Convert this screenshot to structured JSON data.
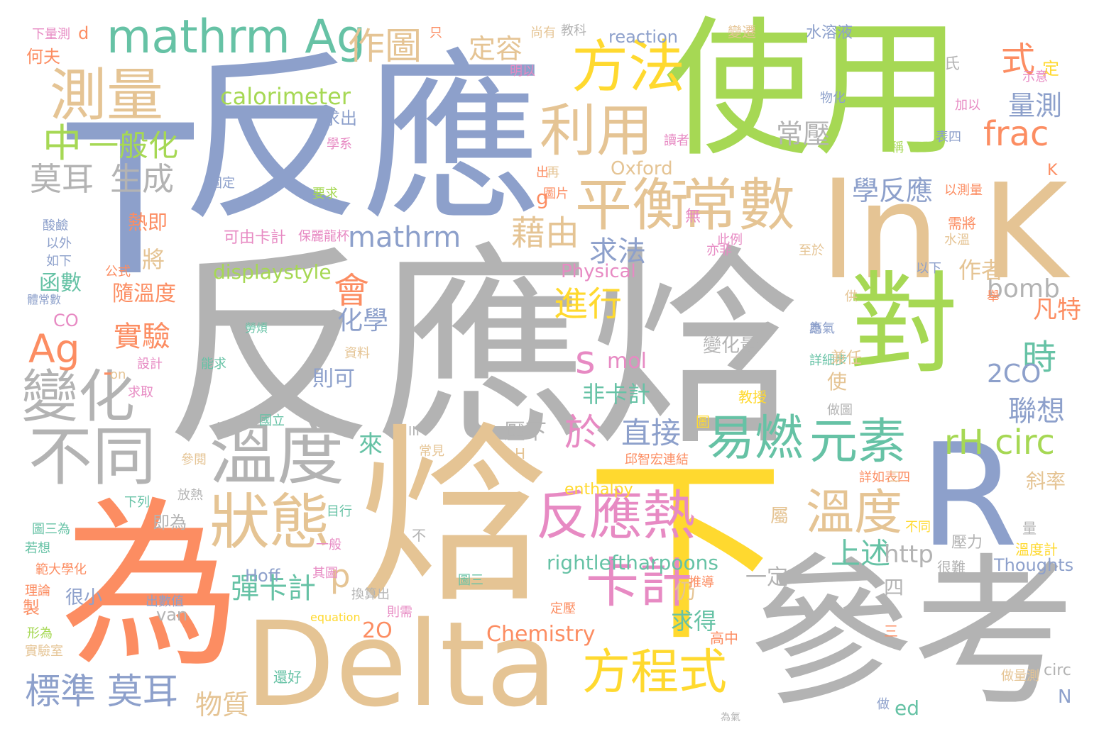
{
  "palette": {
    "blue": "#8da0cb",
    "green": "#a6d854",
    "tan": "#e5c494",
    "gray": "#b3b3b3",
    "orange": "#fc8d62",
    "yellow": "#ffd92f",
    "teal": "#66c2a5",
    "pink": "#e78ac3"
  },
  "words": [
    "反應",
    "使用",
    "反應焓",
    "焓",
    "為",
    "T",
    "ln K",
    "對",
    "R",
    "參考",
    "Delta",
    "下",
    "測量",
    "變化",
    "不同",
    "溫度",
    "狀態",
    "方法",
    "利用",
    "平衡",
    "常數",
    "易燃",
    "元素",
    "反應熱",
    "卡計",
    "方程式",
    "mathrm Ag",
    "中",
    "一般化",
    "莫耳",
    "生成",
    "Ag",
    "作圖",
    "標準 莫耳",
    "溫度",
    "於",
    "s",
    "p",
    "rH circ",
    "frac",
    "式",
    "時",
    "會",
    "實驗",
    "直接",
    "進行",
    "calorimeter",
    "量測",
    "學反應",
    "常壓",
    "Oxford",
    "mathrm",
    "藉由",
    "求法",
    "displaystyle",
    "Physical",
    "bomb",
    "2CO",
    "聯想",
    "mol",
    "非卡計",
    "彈卡計",
    "上述",
    "rightleftharpoons",
    "Chemistry",
    "enthalpy",
    "物質",
    "化學",
    "凡特",
    "作者",
    "定容",
    "reaction",
    "水溶液",
    "求出",
    "熱即",
    "將",
    "隨溫度",
    "函數",
    "CO",
    "2O",
    "-",
    "四",
    "http",
    "Thoughts",
    "Hoff",
    "van",
    "變化量",
    "仍",
    "求得",
    "壓下",
    "來",
    "使",
    "則可",
    "一定",
    "ed",
    "N",
    "g",
    "K",
    "d",
    "何夫",
    "下量測",
    "明以",
    "教科",
    "固定",
    "酸鹼",
    "以外",
    "如下",
    "公式",
    "體常數",
    "勞煩",
    "資料",
    "設計",
    "能求",
    "on",
    "求取",
    "國立",
    "參閱",
    "放熱",
    "下列",
    "圖三為",
    "若想",
    "範大學化",
    "理論",
    "製",
    "形為",
    "實驗室",
    "出數值",
    "equation",
    "還好",
    "則需",
    "定壓",
    "高中",
    "三",
    "做量測",
    "為氣",
    "詳細步",
    "兼任",
    "教授",
    "做圖",
    "邱智宏連結",
    "斜率",
    "壓力",
    "溫度計",
    "很難",
    "詳如表四",
    "三",
    "尚有",
    "變遷",
    "定",
    "示意",
    "表四",
    "稱",
    "以測量",
    "需將",
    "水溫",
    "以下",
    "供",
    "舉",
    "不同",
    "只",
    "圖",
    "H",
    "III",
    "常見",
    "圖三",
    "換算出",
    "一般",
    "其圖",
    "推導",
    "目行",
    "即為",
    "很小",
    "不",
    "可由卡計",
    "保麗龍杯",
    "此例",
    "至於",
    "亦非",
    "無",
    "出",
    "再",
    "圖片",
    "要求",
    "學系",
    "讀者",
    "物化",
    "加以",
    "氏",
    "量",
    "應",
    "為氣",
    "circ",
    "做",
    "屬",
    "應"
  ]
}
